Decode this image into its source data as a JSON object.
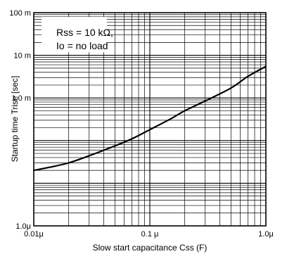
{
  "chart_data": {
    "type": "line",
    "title": "",
    "xlabel": "Slow start capacitance Css (F)",
    "ylabel": "Startup time Trise [sec]",
    "xscale": "log",
    "yscale": "log",
    "xlim": [
      1e-08,
      1e-06
    ],
    "ylim": [
      1e-06,
      0.1
    ],
    "grid": true,
    "x_tick_labels": [
      "0.01μ",
      "0.1 μ",
      "1.0μ"
    ],
    "y_tick_labels": [
      "1.0μ",
      "1.0 m",
      "10 m",
      "100 m"
    ],
    "annotation": [
      "Rss = 10 kΩ,",
      "Io = no load"
    ],
    "series": [
      {
        "x": [
          1e-08,
          1.4e-08,
          2e-08,
          3e-08,
          5e-08,
          7e-08,
          1e-07,
          1.5e-07,
          2e-07,
          3e-07,
          5e-07,
          7e-07,
          1e-06
        ],
        "y": [
          2e-05,
          2.4e-05,
          3e-05,
          4.4e-05,
          7.5e-05,
          0.00011,
          0.00018,
          0.00032,
          0.0005,
          0.00085,
          0.0017,
          0.0032,
          0.0055
        ]
      }
    ]
  }
}
